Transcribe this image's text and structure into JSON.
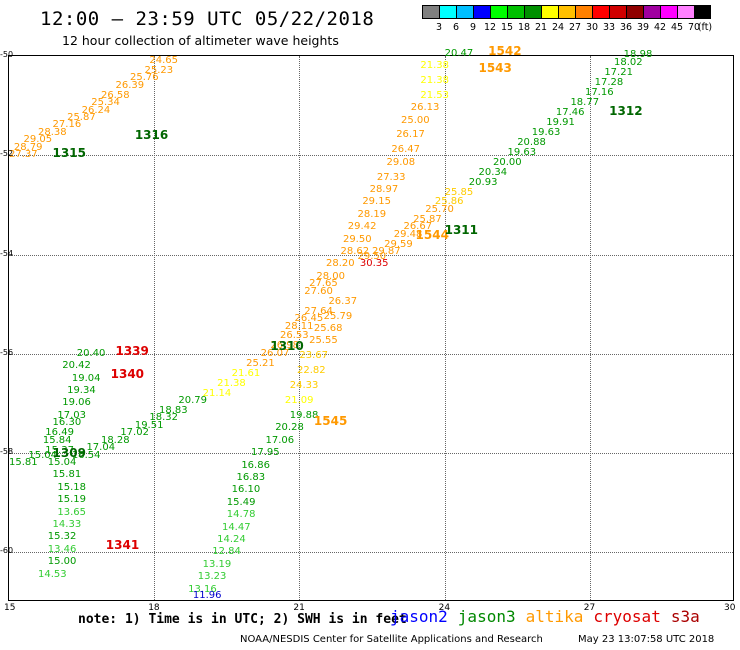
{
  "title": "12:00 – 23:59 UTC 05/22/2018",
  "subtitle": "12 hour collection of altimeter wave heights",
  "colorbar": {
    "unit": "(ft)",
    "ticks": [
      "3",
      "6",
      "9",
      "12",
      "15",
      "18",
      "21",
      "24",
      "27",
      "30",
      "33",
      "36",
      "39",
      "42",
      "45",
      "70"
    ],
    "colors": [
      "#808080",
      "#00ffff",
      "#00bfff",
      "#0000ff",
      "#00ff00",
      "#00c000",
      "#009000",
      "#ffff00",
      "#ffc000",
      "#ff8000",
      "#ff0000",
      "#d00000",
      "#900000",
      "#a000a0",
      "#ff00ff",
      "#ff80ff",
      "#000000"
    ]
  },
  "axes": {
    "y_labels": [
      "-50",
      "-52",
      "-54",
      "-56",
      "-58",
      "-60"
    ],
    "x_labels": [
      "15",
      "18",
      "21",
      "24",
      "27",
      "30"
    ]
  },
  "note": "note: 1) Time is in UTC; 2) SWH is in feet",
  "legend": [
    {
      "name": "jason2",
      "color": "#0000ff"
    },
    {
      "name": "jason3",
      "color": "#008800"
    },
    {
      "name": "altika",
      "color": "#ff9900"
    },
    {
      "name": "cryosat",
      "color": "#dd0000"
    },
    {
      "name": "s3a",
      "color": "#aa0000"
    }
  ],
  "credit": "NOAA/NESDIS Center for Satellite Applications and Research",
  "timestamp": "May 23 13:07:58 UTC 2018",
  "pass_labels": [
    {
      "text": "1316",
      "lon": 17.6,
      "lat": -51.6,
      "color": "#006600"
    },
    {
      "text": "1315",
      "lon": 15.9,
      "lat": -51.96,
      "color": "#006600"
    },
    {
      "text": "1542",
      "lon": 24.9,
      "lat": -49.9,
      "color": "#ff9900"
    },
    {
      "text": "1543",
      "lon": 24.7,
      "lat": -50.25,
      "color": "#ff9900"
    },
    {
      "text": "1312",
      "lon": 27.4,
      "lat": -51.1,
      "color": "#006600"
    },
    {
      "text": "1544",
      "lon": 23.4,
      "lat": -53.6,
      "color": "#ff9900"
    },
    {
      "text": "1311",
      "lon": 24.0,
      "lat": -53.5,
      "color": "#006600"
    },
    {
      "text": "1339",
      "lon": 17.2,
      "lat": -55.95,
      "color": "#dd0000"
    },
    {
      "text": "1340",
      "lon": 17.1,
      "lat": -56.4,
      "color": "#dd0000"
    },
    {
      "text": "1310",
      "lon": 20.4,
      "lat": -55.85,
      "color": "#006600"
    },
    {
      "text": "1545",
      "lon": 21.3,
      "lat": -57.35,
      "color": "#ff9900"
    },
    {
      "text": "1309",
      "lon": 15.9,
      "lat": -58.0,
      "color": "#006600"
    },
    {
      "text": "1341",
      "lon": 17.0,
      "lat": -59.85,
      "color": "#dd0000"
    }
  ],
  "values": [
    {
      "text": "24.65",
      "lon": 17.9,
      "lat": -50.1,
      "color": "#ff9900"
    },
    {
      "text": "25.23",
      "lon": 17.8,
      "lat": -50.3,
      "color": "#ff9900"
    },
    {
      "text": "25.76",
      "lon": 17.5,
      "lat": -50.45,
      "color": "#ff9900"
    },
    {
      "text": "26.39",
      "lon": 17.2,
      "lat": -50.6,
      "color": "#ff9900"
    },
    {
      "text": "26.58",
      "lon": 16.9,
      "lat": -50.8,
      "color": "#ff9900"
    },
    {
      "text": "25.34",
      "lon": 16.7,
      "lat": -50.95,
      "color": "#ff9900"
    },
    {
      "text": "26.24",
      "lon": 16.5,
      "lat": -51.1,
      "color": "#ff9900"
    },
    {
      "text": "25.87",
      "lon": 16.2,
      "lat": -51.25,
      "color": "#ff9900"
    },
    {
      "text": "27.16",
      "lon": 15.9,
      "lat": -51.4,
      "color": "#ff9900"
    },
    {
      "text": "28.38",
      "lon": 15.6,
      "lat": -51.55,
      "color": "#ff9900"
    },
    {
      "text": "29.05",
      "lon": 15.3,
      "lat": -51.7,
      "color": "#ff9900"
    },
    {
      "text": "28.79",
      "lon": 15.1,
      "lat": -51.85,
      "color": "#ff9900"
    },
    {
      "text": "27.37",
      "lon": 14.95,
      "lat": -52.0,
      "color": "#ff9900"
    },
    {
      "text": "20.47",
      "lon": 24.0,
      "lat": -49.95,
      "color": "#009900"
    },
    {
      "text": "21.38",
      "lon": 23.5,
      "lat": -50.2,
      "color": "#ffff00"
    },
    {
      "text": "21.38",
      "lon": 23.5,
      "lat": -50.5,
      "color": "#ffff00"
    },
    {
      "text": "21.53",
      "lon": 23.5,
      "lat": -50.8,
      "color": "#ffff00"
    },
    {
      "text": "26.13",
      "lon": 23.3,
      "lat": -51.05,
      "color": "#ff9900"
    },
    {
      "text": "25.00",
      "lon": 23.1,
      "lat": -51.3,
      "color": "#ff9900"
    },
    {
      "text": "26.17",
      "lon": 23.0,
      "lat": -51.6,
      "color": "#ff9900"
    },
    {
      "text": "26.47",
      "lon": 22.9,
      "lat": -51.9,
      "color": "#ff9900"
    },
    {
      "text": "29.08",
      "lon": 22.8,
      "lat": -52.15,
      "color": "#ff9900"
    },
    {
      "text": "27.33",
      "lon": 22.6,
      "lat": -52.45,
      "color": "#ff9900"
    },
    {
      "text": "28.97",
      "lon": 22.45,
      "lat": -52.7,
      "color": "#ff9900"
    },
    {
      "text": "29.15",
      "lon": 22.3,
      "lat": -52.95,
      "color": "#ff9900"
    },
    {
      "text": "28.19",
      "lon": 22.2,
      "lat": -53.2,
      "color": "#ff9900"
    },
    {
      "text": "29.42",
      "lon": 22.0,
      "lat": -53.45,
      "color": "#ff9900"
    },
    {
      "text": "29.50",
      "lon": 21.9,
      "lat": -53.7,
      "color": "#ff9900"
    },
    {
      "text": "28.62",
      "lon": 21.85,
      "lat": -53.95,
      "color": "#ff9900"
    },
    {
      "text": "30.35",
      "lon": 22.25,
      "lat": -54.2,
      "color": "#dd0000"
    },
    {
      "text": "28.20",
      "lon": 21.55,
      "lat": -54.2,
      "color": "#ff9900"
    },
    {
      "text": "28.00",
      "lon": 21.35,
      "lat": -54.45,
      "color": "#ff9900"
    },
    {
      "text": "27.65",
      "lon": 21.2,
      "lat": -54.6,
      "color": "#ff9900"
    },
    {
      "text": "27.60",
      "lon": 21.1,
      "lat": -54.75,
      "color": "#ff9900"
    },
    {
      "text": "26.37",
      "lon": 21.6,
      "lat": -54.95,
      "color": "#ff9900"
    },
    {
      "text": "27.64",
      "lon": 21.1,
      "lat": -55.15,
      "color": "#ff9900"
    },
    {
      "text": "25.79",
      "lon": 21.5,
      "lat": -55.25,
      "color": "#ff9900"
    },
    {
      "text": "26.45",
      "lon": 20.9,
      "lat": -55.3,
      "color": "#ff9900"
    },
    {
      "text": "28.11",
      "lon": 20.7,
      "lat": -55.45,
      "color": "#ff9900"
    },
    {
      "text": "25.68",
      "lon": 21.3,
      "lat": -55.5,
      "color": "#ff9900"
    },
    {
      "text": "26.53",
      "lon": 20.6,
      "lat": -55.65,
      "color": "#ff9900"
    },
    {
      "text": "25.55",
      "lon": 21.2,
      "lat": -55.75,
      "color": "#ff9900"
    },
    {
      "text": "26.98",
      "lon": 20.4,
      "lat": -55.85,
      "color": "#ff9900"
    },
    {
      "text": "26.07",
      "lon": 20.2,
      "lat": -56.0,
      "color": "#ff9900"
    },
    {
      "text": "23.67",
      "lon": 21.0,
      "lat": -56.05,
      "color": "#ffcc00"
    },
    {
      "text": "25.21",
      "lon": 19.9,
      "lat": -56.2,
      "color": "#ff9900"
    },
    {
      "text": "22.82",
      "lon": 20.95,
      "lat": -56.35,
      "color": "#ffcc00"
    },
    {
      "text": "21.61",
      "lon": 19.6,
      "lat": -56.4,
      "color": "#ffff00"
    },
    {
      "text": "21.38",
      "lon": 19.3,
      "lat": -56.6,
      "color": "#ffff00"
    },
    {
      "text": "24.33",
      "lon": 20.8,
      "lat": -56.65,
      "color": "#ffcc00"
    },
    {
      "text": "21.14",
      "lon": 19.0,
      "lat": -56.8,
      "color": "#ffff00"
    },
    {
      "text": "21.09",
      "lon": 20.7,
      "lat": -56.95,
      "color": "#ffff00"
    },
    {
      "text": "18.98",
      "lon": 27.7,
      "lat": -49.98,
      "color": "#009900"
    },
    {
      "text": "18.02",
      "lon": 27.5,
      "lat": -50.15,
      "color": "#009900"
    },
    {
      "text": "17.21",
      "lon": 27.3,
      "lat": -50.35,
      "color": "#009900"
    },
    {
      "text": "17.28",
      "lon": 27.1,
      "lat": -50.55,
      "color": "#009900"
    },
    {
      "text": "17.16",
      "lon": 26.9,
      "lat": -50.75,
      "color": "#009900"
    },
    {
      "text": "18.77",
      "lon": 26.6,
      "lat": -50.95,
      "color": "#009900"
    },
    {
      "text": "17.46",
      "lon": 26.3,
      "lat": -51.15,
      "color": "#009900"
    },
    {
      "text": "19.91",
      "lon": 26.1,
      "lat": -51.35,
      "color": "#009900"
    },
    {
      "text": "19.63",
      "lon": 25.8,
      "lat": -51.55,
      "color": "#009900"
    },
    {
      "text": "20.88",
      "lon": 25.5,
      "lat": -51.75,
      "color": "#009900"
    },
    {
      "text": "19.63",
      "lon": 25.3,
      "lat": -51.95,
      "color": "#009900"
    },
    {
      "text": "20.00",
      "lon": 25.0,
      "lat": -52.15,
      "color": "#009900"
    },
    {
      "text": "20.34",
      "lon": 24.7,
      "lat": -52.35,
      "color": "#009900"
    },
    {
      "text": "20.93",
      "lon": 24.5,
      "lat": -52.55,
      "color": "#009900"
    },
    {
      "text": "25.85",
      "lon": 24.0,
      "lat": -52.75,
      "color": "#ffcc00"
    },
    {
      "text": "25.86",
      "lon": 23.8,
      "lat": -52.95,
      "color": "#ffcc00"
    },
    {
      "text": "25.70",
      "lon": 23.6,
      "lat": -53.1,
      "color": "#ff9900"
    },
    {
      "text": "25.87",
      "lon": 23.35,
      "lat": -53.3,
      "color": "#ff9900"
    },
    {
      "text": "26.67",
      "lon": 23.15,
      "lat": -53.45,
      "color": "#ff9900"
    },
    {
      "text": "29.48",
      "lon": 22.95,
      "lat": -53.6,
      "color": "#ff9900"
    },
    {
      "text": "29.59",
      "lon": 22.75,
      "lat": -53.8,
      "color": "#ff9900"
    },
    {
      "text": "29.87",
      "lon": 22.5,
      "lat": -53.95,
      "color": "#ff9900"
    },
    {
      "text": "29.50",
      "lon": 22.2,
      "lat": -54.05,
      "color": "#ff9900"
    },
    {
      "text": "20.40",
      "lon": 16.4,
      "lat": -56.0,
      "color": "#009900"
    },
    {
      "text": "20.42",
      "lon": 16.1,
      "lat": -56.25,
      "color": "#009900"
    },
    {
      "text": "19.04",
      "lon": 16.3,
      "lat": -56.5,
      "color": "#009900"
    },
    {
      "text": "19.34",
      "lon": 16.2,
      "lat": -56.75,
      "color": "#009900"
    },
    {
      "text": "19.06",
      "lon": 16.1,
      "lat": -57.0,
      "color": "#009900"
    },
    {
      "text": "17.03",
      "lon": 16.0,
      "lat": -57.25,
      "color": "#009900"
    },
    {
      "text": "16.30",
      "lon": 15.9,
      "lat": -57.4,
      "color": "#009900"
    },
    {
      "text": "16.49",
      "lon": 15.75,
      "lat": -57.6,
      "color": "#009900"
    },
    {
      "text": "15.84",
      "lon": 15.7,
      "lat": -57.75,
      "color": "#009900"
    },
    {
      "text": "15.37",
      "lon": 15.75,
      "lat": -57.95,
      "color": "#009900"
    },
    {
      "text": "15.04",
      "lon": 15.4,
      "lat": -58.05,
      "color": "#009900"
    },
    {
      "text": "15.81",
      "lon": 15.0,
      "lat": -58.2,
      "color": "#009900"
    },
    {
      "text": "15.04",
      "lon": 15.8,
      "lat": -58.2,
      "color": "#009900"
    },
    {
      "text": "15.81",
      "lon": 15.9,
      "lat": -58.45,
      "color": "#009900"
    },
    {
      "text": "15.18",
      "lon": 16.0,
      "lat": -58.7,
      "color": "#009900"
    },
    {
      "text": "15.19",
      "lon": 16.0,
      "lat": -58.95,
      "color": "#009900"
    },
    {
      "text": "13.65",
      "lon": 16.0,
      "lat": -59.2,
      "color": "#33cc33"
    },
    {
      "text": "14.33",
      "lon": 15.9,
      "lat": -59.45,
      "color": "#33cc33"
    },
    {
      "text": "15.32",
      "lon": 15.8,
      "lat": -59.7,
      "color": "#009900"
    },
    {
      "text": "13.46",
      "lon": 15.8,
      "lat": -59.95,
      "color": "#33cc33"
    },
    {
      "text": "15.00",
      "lon": 15.8,
      "lat": -60.2,
      "color": "#009900"
    },
    {
      "text": "14.53",
      "lon": 15.6,
      "lat": -60.45,
      "color": "#33cc33"
    },
    {
      "text": "20.79",
      "lon": 18.5,
      "lat": -56.95,
      "color": "#009900"
    },
    {
      "text": "18.83",
      "lon": 18.1,
      "lat": -57.15,
      "color": "#009900"
    },
    {
      "text": "18.32",
      "lon": 17.9,
      "lat": -57.3,
      "color": "#009900"
    },
    {
      "text": "19.51",
      "lon": 17.6,
      "lat": -57.45,
      "color": "#009900"
    },
    {
      "text": "17.02",
      "lon": 17.3,
      "lat": -57.6,
      "color": "#009900"
    },
    {
      "text": "18.28",
      "lon": 16.9,
      "lat": -57.75,
      "color": "#009900"
    },
    {
      "text": "17.04",
      "lon": 16.6,
      "lat": -57.9,
      "color": "#009900"
    },
    {
      "text": "16.54",
      "lon": 16.3,
      "lat": -58.05,
      "color": "#009900"
    },
    {
      "text": "19.88",
      "lon": 20.8,
      "lat": -57.25,
      "color": "#009900"
    },
    {
      "text": "20.28",
      "lon": 20.5,
      "lat": -57.5,
      "color": "#009900"
    },
    {
      "text": "17.06",
      "lon": 20.3,
      "lat": -57.75,
      "color": "#009900"
    },
    {
      "text": "17.95",
      "lon": 20.0,
      "lat": -58.0,
      "color": "#009900"
    },
    {
      "text": "16.86",
      "lon": 19.8,
      "lat": -58.25,
      "color": "#009900"
    },
    {
      "text": "16.83",
      "lon": 19.7,
      "lat": -58.5,
      "color": "#009900"
    },
    {
      "text": "16.10",
      "lon": 19.6,
      "lat": -58.75,
      "color": "#009900"
    },
    {
      "text": "15.49",
      "lon": 19.5,
      "lat": -59.0,
      "color": "#009900"
    },
    {
      "text": "14.78",
      "lon": 19.5,
      "lat": -59.25,
      "color": "#33cc33"
    },
    {
      "text": "14.47",
      "lon": 19.4,
      "lat": -59.5,
      "color": "#33cc33"
    },
    {
      "text": "14.24",
      "lon": 19.3,
      "lat": -59.75,
      "color": "#33cc33"
    },
    {
      "text": "12.84",
      "lon": 19.2,
      "lat": -60.0,
      "color": "#33cc33"
    },
    {
      "text": "13.19",
      "lon": 19.0,
      "lat": -60.25,
      "color": "#33cc33"
    },
    {
      "text": "13.23",
      "lon": 18.9,
      "lat": -60.5,
      "color": "#33cc33"
    },
    {
      "text": "13.16",
      "lon": 18.7,
      "lat": -60.75,
      "color": "#33cc33"
    },
    {
      "text": "11.96",
      "lon": 18.8,
      "lat": -61.0,
      "color": "#0000cc"
    }
  ]
}
